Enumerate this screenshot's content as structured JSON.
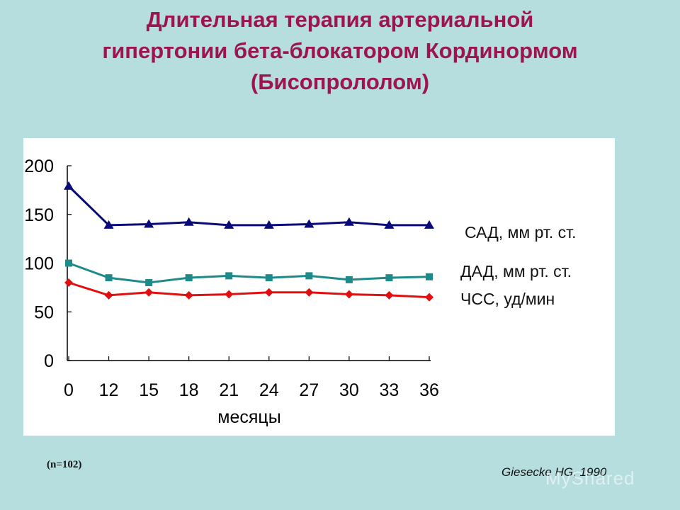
{
  "title": {
    "line1": "Длительная терапия артериальной",
    "line2": "гипертонии бета-блокатором Кординормом",
    "line3": "(Бисопрололом)"
  },
  "chart_data": {
    "type": "line",
    "categories": [
      "0",
      "12",
      "15",
      "18",
      "21",
      "24",
      "27",
      "30",
      "33",
      "36"
    ],
    "series": [
      {
        "name": "САД, мм рт. ст.",
        "color": "#0a0a78",
        "marker": "triangle",
        "values": [
          179,
          139,
          140,
          142,
          139,
          139,
          140,
          142,
          139,
          139
        ]
      },
      {
        "name": "ДАД, мм рт. ст.",
        "color": "#1e8a8a",
        "marker": "square",
        "values": [
          100,
          85,
          80,
          85,
          87,
          85,
          87,
          83,
          85,
          86
        ]
      },
      {
        "name": "ЧСС, уд/мин",
        "color": "#e01010",
        "marker": "diamond",
        "values": [
          80,
          67,
          70,
          67,
          68,
          70,
          70,
          68,
          67,
          65
        ]
      }
    ],
    "yticks": [
      "200",
      "150",
      "100",
      "50",
      "0"
    ],
    "ylim": [
      0,
      200
    ],
    "xlabel": "месяцы",
    "ylabel": "",
    "grid": false,
    "legend": "right"
  },
  "footnote": "(n=102)",
  "source": "Giesecke HG, 1990",
  "watermark": "MyShared"
}
